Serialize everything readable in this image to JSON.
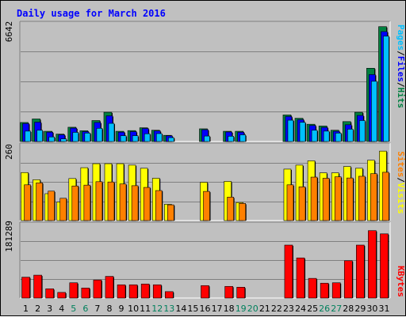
{
  "chart_data": [
    {
      "type": "bar",
      "title": "Daily usage for March 2016",
      "panel": "pages-files-hits",
      "ymax_label": "6642",
      "ylim": [
        0,
        6642
      ],
      "ylabel": [
        "Pages",
        "Files",
        "Hits"
      ],
      "colors": {
        "hits": "#008040",
        "files": "#0000ff",
        "pages": "#00c0ff"
      },
      "categories": [
        "1",
        "2",
        "3",
        "4",
        "5",
        "6",
        "7",
        "8",
        "9",
        "10",
        "11",
        "12",
        "13",
        "14",
        "15",
        "16",
        "17",
        "18",
        "19",
        "20",
        "21",
        "22",
        "23",
        "24",
        "25",
        "26",
        "27",
        "28",
        "29",
        "30",
        "31"
      ],
      "series": [
        {
          "name": "Hits",
          "values": [
            1080,
            1280,
            580,
            420,
            810,
            610,
            1190,
            1660,
            580,
            620,
            780,
            640,
            350,
            0,
            0,
            720,
            0,
            580,
            580,
            0,
            0,
            0,
            1510,
            1320,
            980,
            880,
            640,
            1130,
            1660,
            4160,
            6520
          ]
        },
        {
          "name": "Files",
          "values": [
            1020,
            1100,
            530,
            380,
            760,
            560,
            1080,
            1460,
            530,
            560,
            740,
            600,
            320,
            0,
            0,
            670,
            0,
            540,
            530,
            0,
            0,
            0,
            1420,
            1240,
            910,
            800,
            580,
            950,
            1480,
            3800,
            6240
          ]
        },
        {
          "name": "Pages",
          "values": [
            590,
            640,
            260,
            150,
            520,
            480,
            750,
            1030,
            330,
            330,
            440,
            450,
            220,
            0,
            0,
            310,
            0,
            300,
            380,
            0,
            0,
            0,
            1210,
            1090,
            640,
            590,
            480,
            700,
            1190,
            3420,
            5980
          ]
        }
      ]
    },
    {
      "type": "bar",
      "panel": "visits-sites",
      "ymax_label": "260",
      "ylim": [
        0,
        260
      ],
      "ylabel": [
        "Sites",
        "Visits"
      ],
      "colors": {
        "visits": "#ffff00",
        "sites": "#ff8000"
      },
      "categories": [
        "1",
        "2",
        "3",
        "4",
        "5",
        "6",
        "7",
        "8",
        "9",
        "10",
        "11",
        "12",
        "13",
        "14",
        "15",
        "16",
        "17",
        "18",
        "19",
        "20",
        "21",
        "22",
        "23",
        "24",
        "25",
        "26",
        "27",
        "28",
        "29",
        "30",
        "31"
      ],
      "series": [
        {
          "name": "Visits",
          "values": [
            168,
            143,
            94,
            65,
            147,
            185,
            199,
            199,
            199,
            194,
            183,
            148,
            57,
            0,
            0,
            134,
            0,
            137,
            63,
            0,
            0,
            0,
            180,
            194,
            209,
            167,
            167,
            189,
            183,
            211,
            243
          ]
        },
        {
          "name": "Sites",
          "values": [
            125,
            132,
            103,
            78,
            121,
            124,
            136,
            135,
            128,
            122,
            116,
            105,
            55,
            0,
            0,
            102,
            0,
            82,
            60,
            0,
            0,
            0,
            125,
            118,
            152,
            148,
            153,
            149,
            155,
            164,
            169
          ]
        }
      ]
    },
    {
      "type": "bar",
      "panel": "kbytes",
      "ymax_label": "181289",
      "ylim": [
        0,
        181289
      ],
      "ylabel": [
        "KBytes"
      ],
      "colors": {
        "kbytes": "#ff0000"
      },
      "categories": [
        "1",
        "2",
        "3",
        "4",
        "5",
        "6",
        "7",
        "8",
        "9",
        "10",
        "11",
        "12",
        "13",
        "14",
        "15",
        "16",
        "17",
        "18",
        "19",
        "20",
        "21",
        "22",
        "23",
        "24",
        "25",
        "26",
        "27",
        "28",
        "29",
        "30",
        "31"
      ],
      "series": [
        {
          "name": "KBytes",
          "values": [
            52000,
            57000,
            23000,
            14000,
            38000,
            25000,
            45000,
            54000,
            33000,
            33000,
            35000,
            33000,
            16000,
            0,
            0,
            31000,
            0,
            29000,
            27000,
            0,
            0,
            0,
            132000,
            100000,
            49000,
            37000,
            38000,
            93000,
            132000,
            168000,
            160000
          ]
        }
      ]
    }
  ],
  "x_axis": {
    "labels": [
      "1",
      "2",
      "3",
      "4",
      "5",
      "6",
      "7",
      "8",
      "9",
      "10",
      "11",
      "12",
      "13",
      "14",
      "15",
      "16",
      "17",
      "18",
      "19",
      "20",
      "21",
      "22",
      "23",
      "24",
      "25",
      "26",
      "27",
      "28",
      "29",
      "30",
      "31"
    ],
    "weekend_days": [
      5,
      6,
      12,
      13,
      19,
      20,
      26,
      27
    ],
    "weekday_color": "#000000",
    "weekend_color": "#00805c"
  }
}
